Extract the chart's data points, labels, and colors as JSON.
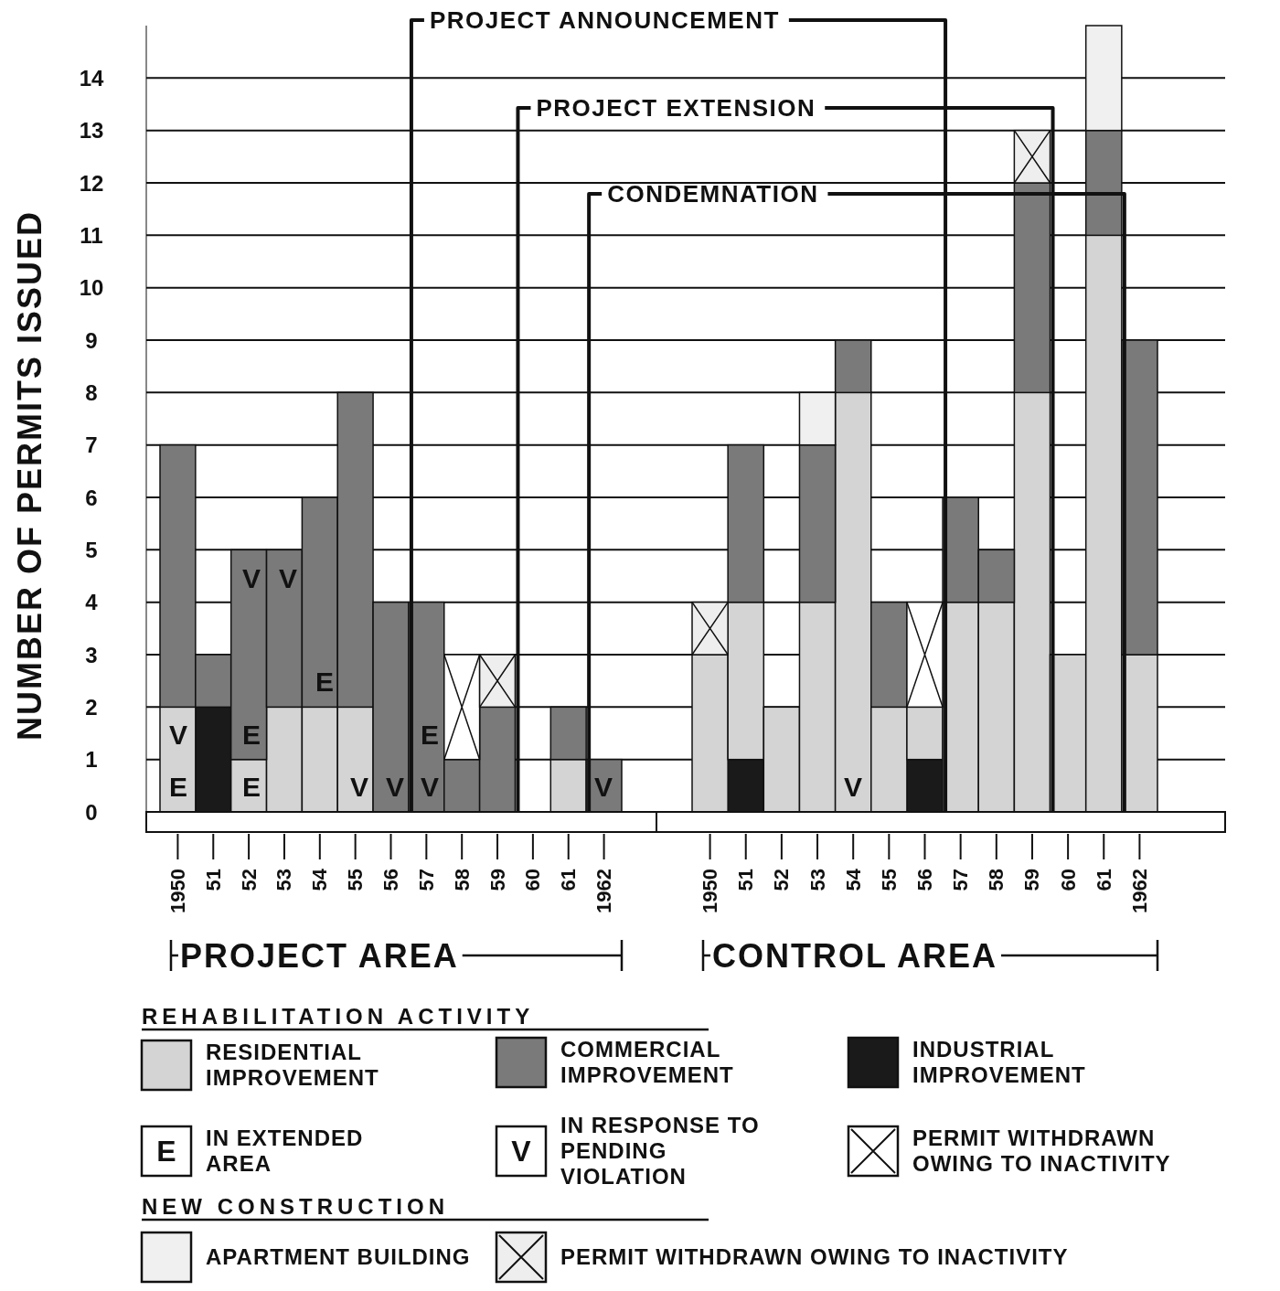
{
  "chart_data": [
    {
      "type": "bar",
      "stacked": true,
      "xlabel": "PROJECT AREA",
      "ylabel": "NUMBER OF PERMITS ISSUED",
      "grid": "y",
      "categories": [
        "1950",
        "51",
        "52",
        "53",
        "54",
        "55",
        "56",
        "57",
        "58",
        "59",
        "60",
        "61",
        "1962"
      ],
      "ylim": [
        0,
        15
      ],
      "yticks": [
        0,
        1,
        2,
        3,
        4,
        5,
        6,
        7,
        8,
        9,
        10,
        11,
        12,
        13,
        14
      ],
      "series": [
        {
          "color": "#1a1a1a",
          "values": [
            null,
            2,
            null,
            null,
            null,
            null,
            null,
            null,
            null,
            null,
            null,
            null,
            null
          ]
        },
        {
          "color": "#d4d4d4",
          "values": [
            2,
            null,
            1,
            2,
            2,
            2,
            null,
            null,
            null,
            null,
            null,
            1,
            null
          ]
        },
        {
          "color": "#7a7a7a",
          "values": [
            5,
            1,
            4,
            3,
            4,
            6,
            4,
            4,
            1,
            2,
            null,
            1,
            1
          ]
        },
        {
          "color": "#ffffff",
          "marker": "cross",
          "values": [
            null,
            null,
            null,
            null,
            null,
            null,
            null,
            null,
            2,
            null,
            null,
            null,
            null
          ]
        },
        {
          "color": "#eeeeee",
          "marker": "cross",
          "values": [
            null,
            null,
            null,
            null,
            null,
            null,
            null,
            null,
            null,
            1,
            null,
            null,
            null
          ]
        }
      ],
      "ref_lines": [
        {
          "axis": "x",
          "value": "57",
          "label": "PROJECT ANNOUNCEMENT"
        },
        {
          "axis": "x",
          "value": "60",
          "label": "PROJECT EXTENSION"
        },
        {
          "axis": "x",
          "value": "1962",
          "label": "CONDEMNATION"
        }
      ],
      "annotations": [
        "E",
        "V",
        "E",
        "E",
        "V",
        "V",
        "E",
        "V",
        "V",
        "V",
        "E",
        "V"
      ]
    },
    {
      "type": "bar",
      "stacked": true,
      "xlabel": "CONTROL AREA",
      "grid": "y",
      "tick_labels": "x",
      "legend": "bottom",
      "legend_title": "REHABILITATION ACTIVITY",
      "categories": [
        "1950",
        "51",
        "52",
        "53",
        "54",
        "55",
        "56",
        "57",
        "58",
        "59",
        "60",
        "61",
        "1962"
      ],
      "ylim": [
        0,
        15
      ],
      "yticks": [
        0,
        1,
        2,
        3,
        4,
        5,
        6,
        7,
        8,
        9,
        10,
        11,
        12,
        13,
        14
      ],
      "series": [
        {
          "name": "INDUSTRIAL IMPROVEMENT",
          "color": "#1a1a1a",
          "values": [
            null,
            1,
            null,
            null,
            null,
            null,
            1,
            null,
            null,
            null,
            null,
            null,
            null
          ]
        },
        {
          "name": "RESIDENTIAL IMPROVEMENT",
          "color": "#d4d4d4",
          "values": [
            3,
            3,
            2,
            4,
            8,
            2,
            1,
            4,
            4,
            8,
            3,
            11,
            3
          ]
        },
        {
          "name": "COMMERCIAL IMPROVEMENT",
          "color": "#7a7a7a",
          "values": [
            null,
            3,
            null,
            3,
            1,
            2,
            null,
            2,
            1,
            4,
            null,
            2,
            6
          ]
        },
        {
          "name": "PERMIT WITHDRAWN OWING TO INACTIVITY",
          "color": "#ffffff",
          "marker": "cross",
          "values": [
            null,
            null,
            null,
            null,
            null,
            null,
            2,
            null,
            null,
            null,
            null,
            null,
            null
          ]
        },
        {
          "name": "PERMIT WITHDRAWN OWING TO INACTIVITY",
          "color": "#eeeeee",
          "marker": "cross",
          "values": [
            1,
            null,
            null,
            null,
            null,
            null,
            null,
            null,
            null,
            1,
            null,
            null,
            null
          ]
        },
        {
          "name": "APARTMENT BUILDING",
          "color": "#f0f0f0",
          "values": [
            null,
            null,
            null,
            1,
            null,
            null,
            null,
            null,
            null,
            null,
            null,
            2,
            null
          ]
        }
      ],
      "ref_lines": [
        {
          "axis": "x",
          "value": "57"
        },
        {
          "axis": "x",
          "value": "60"
        },
        {
          "axis": "x",
          "value": "1962"
        }
      ],
      "annotations": [
        "V",
        "E",
        "IN EXTENDED AREA",
        "V",
        "IN RESPONSE TO PENDING VIOLATION",
        "NEW CONSTRUCTION"
      ]
    }
  ]
}
